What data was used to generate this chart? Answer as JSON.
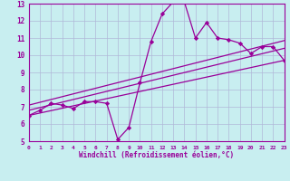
{
  "xlabel": "Windchill (Refroidissement éolien,°C)",
  "xlim": [
    0,
    23
  ],
  "ylim": [
    5,
    13
  ],
  "xticks": [
    0,
    1,
    2,
    3,
    4,
    5,
    6,
    7,
    8,
    9,
    10,
    11,
    12,
    13,
    14,
    15,
    16,
    17,
    18,
    19,
    20,
    21,
    22,
    23
  ],
  "yticks": [
    5,
    6,
    7,
    8,
    9,
    10,
    11,
    12,
    13
  ],
  "bg_color": "#c8eef0",
  "grid_color": "#b0b8d8",
  "line_color": "#990099",
  "wavy_x": [
    0,
    1,
    2,
    3,
    4,
    5,
    6,
    7,
    8,
    9,
    10,
    11,
    12,
    13,
    14,
    15,
    16,
    17,
    18,
    19,
    20,
    21,
    22,
    23
  ],
  "wavy_y": [
    6.5,
    6.8,
    7.2,
    7.1,
    6.9,
    7.3,
    7.3,
    7.2,
    5.1,
    5.8,
    8.4,
    10.8,
    12.4,
    13.1,
    13.1,
    11.0,
    11.9,
    11.0,
    10.9,
    10.7,
    10.1,
    10.5,
    10.5,
    9.7
  ],
  "line1_x": [
    0,
    23
  ],
  "line1_y": [
    6.5,
    9.7
  ],
  "line2_x": [
    0,
    23
  ],
  "line2_y": [
    6.8,
    10.4
  ],
  "line3_x": [
    0,
    23
  ],
  "line3_y": [
    7.1,
    10.85
  ]
}
